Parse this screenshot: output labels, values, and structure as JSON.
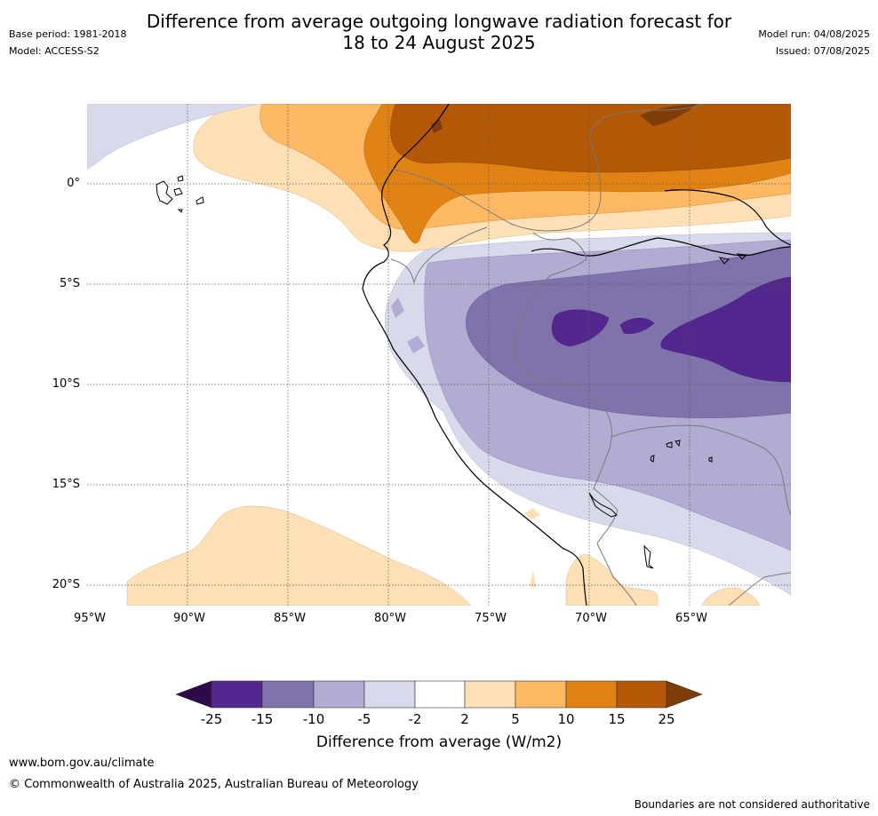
{
  "title_line1": "Difference from average outgoing longwave radiation forecast for",
  "title_line2": "18 to 24 August 2025",
  "base_period": "Base period: 1981-2018",
  "model": "Model: ACCESS-S2",
  "model_run": "Model run: 04/08/2025",
  "issued": "Issued: 07/08/2025",
  "lat_labels": [
    "0°",
    "5°S",
    "10°S",
    "15°S",
    "20°S"
  ],
  "lon_labels": [
    "95°W",
    "90°W",
    "85°W",
    "80°W",
    "75°W",
    "70°W",
    "65°W"
  ],
  "colorbar": {
    "title": "Difference from average (W/m2)",
    "ticks": [
      "-25",
      "-15",
      "-10",
      "-5",
      "-2",
      "2",
      "5",
      "10",
      "15",
      "25"
    ],
    "colors": {
      "lt_-25": "#2d0a4a",
      "-25_-15": "#54278f",
      "-15_-10": "#8073ac",
      "-10_-5": "#b2abd2",
      "-5_-2": "#d8daeb",
      "-2_2": "#ffffff",
      "2_5": "#fee0b6",
      "5_10": "#fdb863",
      "10_15": "#e08214",
      "15_25": "#b35806",
      "gt_25": "#7f3b08"
    }
  },
  "site_url": "www.bom.gov.au/climate",
  "copyright": "© Commonwealth of Australia 2025, Australian Bureau of Meteorology",
  "disclaimer": "Boundaries are not considered authoritative"
}
